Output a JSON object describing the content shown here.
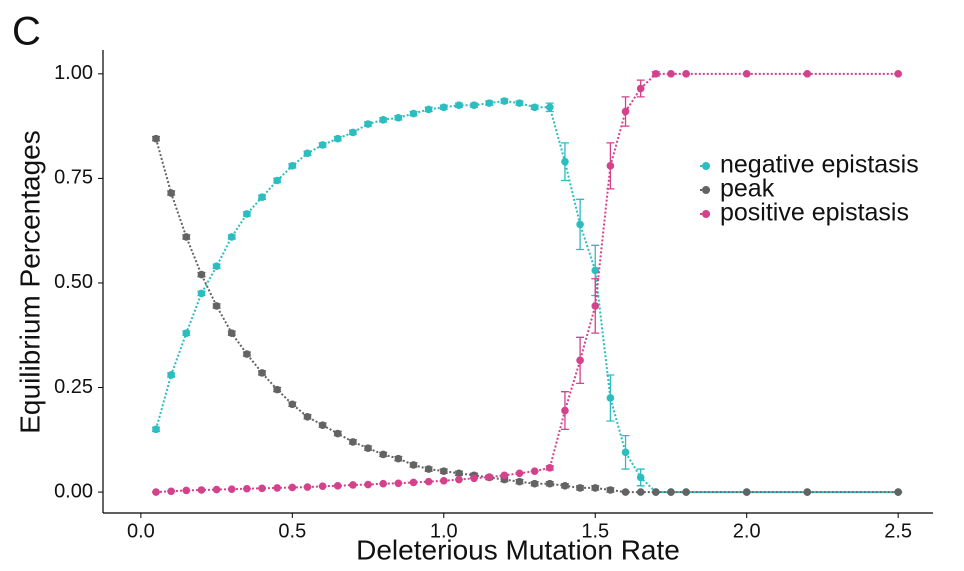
{
  "chart_data": {
    "type": "line",
    "panel_label": "C",
    "x_label": "Deleterious Mutation Rate",
    "y_label": "Equilibrium Percentages",
    "x": [
      0.05,
      0.1,
      0.15,
      0.2,
      0.25,
      0.3,
      0.35,
      0.4,
      0.45,
      0.5,
      0.55,
      0.6,
      0.65,
      0.7,
      0.75,
      0.8,
      0.85,
      0.9,
      0.95,
      1.0,
      1.05,
      1.1,
      1.15,
      1.2,
      1.25,
      1.3,
      1.35,
      1.4,
      1.45,
      1.5,
      1.55,
      1.6,
      1.65,
      1.7,
      1.75,
      1.8,
      2.0,
      2.2,
      2.5
    ],
    "series": [
      {
        "name": "negative epistasis",
        "color": "#2bbdbf",
        "values": [
          0.15,
          0.28,
          0.38,
          0.475,
          0.54,
          0.61,
          0.665,
          0.705,
          0.745,
          0.78,
          0.81,
          0.83,
          0.845,
          0.86,
          0.88,
          0.89,
          0.895,
          0.905,
          0.915,
          0.92,
          0.925,
          0.925,
          0.93,
          0.935,
          0.93,
          0.92,
          0.92,
          0.79,
          0.64,
          0.53,
          0.225,
          0.095,
          0.035,
          0,
          0,
          0,
          0,
          0,
          0
        ],
        "errors": [
          0.005,
          0.005,
          0.005,
          0.005,
          0.005,
          0.005,
          0.005,
          0.005,
          0.005,
          0.005,
          0.005,
          0.005,
          0.005,
          0.005,
          0.005,
          0.005,
          0.005,
          0.005,
          0.005,
          0.005,
          0.005,
          0.005,
          0.005,
          0.005,
          0.005,
          0.005,
          0.01,
          0.045,
          0.06,
          0.06,
          0.055,
          0.04,
          0.02,
          0,
          0,
          0,
          0,
          0,
          0
        ]
      },
      {
        "name": "peak",
        "color": "#636363",
        "values": [
          0.845,
          0.715,
          0.61,
          0.52,
          0.445,
          0.38,
          0.33,
          0.285,
          0.245,
          0.21,
          0.18,
          0.16,
          0.14,
          0.12,
          0.105,
          0.09,
          0.08,
          0.065,
          0.055,
          0.05,
          0.045,
          0.04,
          0.035,
          0.03,
          0.025,
          0.02,
          0.02,
          0.015,
          0.01,
          0.01,
          0.005,
          0,
          0,
          0,
          0,
          0,
          0,
          0,
          0
        ],
        "errors": [
          0.005,
          0.005,
          0.005,
          0.005,
          0.005,
          0.005,
          0.005,
          0.005,
          0.005,
          0.005,
          0.005,
          0.005,
          0.005,
          0.005,
          0.005,
          0.005,
          0.005,
          0.005,
          0.005,
          0.005,
          0.005,
          0.005,
          0.005,
          0.005,
          0.005,
          0.005,
          0.005,
          0.005,
          0.005,
          0.005,
          0.005,
          0,
          0,
          0,
          0,
          0,
          0,
          0,
          0
        ]
      },
      {
        "name": "positive epistasis",
        "color": "#d4418c",
        "values": [
          0,
          0.002,
          0.004,
          0.005,
          0.006,
          0.007,
          0.008,
          0.009,
          0.01,
          0.011,
          0.012,
          0.014,
          0.015,
          0.017,
          0.018,
          0.02,
          0.021,
          0.023,
          0.025,
          0.027,
          0.03,
          0.033,
          0.036,
          0.04,
          0.045,
          0.05,
          0.058,
          0.195,
          0.315,
          0.445,
          0.78,
          0.91,
          0.965,
          1,
          1,
          1,
          1,
          1,
          1
        ],
        "errors": [
          0,
          0,
          0,
          0,
          0,
          0,
          0,
          0,
          0,
          0,
          0,
          0,
          0,
          0,
          0,
          0,
          0,
          0,
          0,
          0,
          0,
          0,
          0,
          0,
          0,
          0,
          0.005,
          0.045,
          0.055,
          0.065,
          0.055,
          0.035,
          0.02,
          0.005,
          0,
          0,
          0,
          0,
          0
        ]
      }
    ],
    "xlim": [
      -0.125,
      2.615
    ],
    "ylim": [
      -0.05,
      1.057
    ],
    "xticks": [
      {
        "value": 0,
        "label": "0.0"
      },
      0.5,
      {
        "value": 1,
        "label": "1.0"
      },
      1.5,
      {
        "value": 2,
        "label": "2.0"
      },
      2.5
    ],
    "yticks": [
      {
        "value": 0,
        "label": "0.00"
      },
      {
        "value": 0.25,
        "label": "0.25"
      },
      {
        "value": 0.5,
        "label": "0.50"
      },
      {
        "value": 0.75,
        "label": "0.75"
      },
      {
        "value": 1,
        "label": "1.00"
      }
    ],
    "legend": "right",
    "grid": false
  }
}
